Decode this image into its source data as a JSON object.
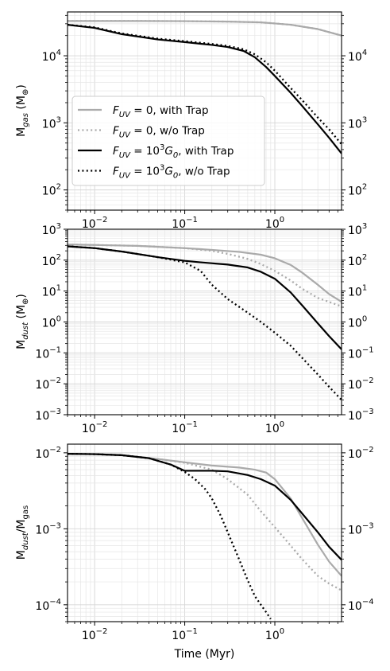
{
  "colors": {
    "gray": "#aaaaaa",
    "black": "#000000",
    "grid": "#e6e6e6"
  },
  "chart_data": [
    {
      "type": "line",
      "x_scale": "log",
      "y_scale": "log",
      "xlim": [
        0.005,
        5.5
      ],
      "ylim": [
        50,
        45000
      ],
      "ylabel": "M",
      "ylabel_sub": "gas",
      "ylabel_unit": " (M",
      "ylabel_unit_sub": "⊕",
      "ylabel_close": ")",
      "xlabel": "",
      "x_ticks": [
        {
          "value": 0.01,
          "base": "10",
          "exp": "−2"
        },
        {
          "value": 0.1,
          "base": "10",
          "exp": "−1"
        },
        {
          "value": 1,
          "base": "10",
          "exp": "0"
        }
      ],
      "y_ticks": [
        {
          "value": 100,
          "base": "10",
          "exp": "2"
        },
        {
          "value": 1000,
          "base": "10",
          "exp": "3"
        },
        {
          "value": 10000,
          "base": "10",
          "exp": "4"
        }
      ],
      "grid": true,
      "legend": {
        "placement": "lower-left",
        "entries": [
          {
            "text": "F_UV = 0, with Trap",
            "math": "F",
            "sub": "UV",
            "rest": " = 0, with Trap",
            "sup": "",
            "g": "",
            "tail": ""
          },
          {
            "text": "F_UV = 0, w/o Trap",
            "math": "F",
            "sub": "UV",
            "rest": " = 0, w/o Trap",
            "sup": "",
            "g": "",
            "tail": ""
          },
          {
            "text": "F_UV = 10^3 G_0, with Trap",
            "math": "F",
            "sub": "UV",
            "rest": " = 10",
            "sup": "3",
            "g": "G",
            "tail": ", with Trap"
          },
          {
            "text": "F_UV = 10^3 G_0, w/o Trap",
            "math": "F",
            "sub": "UV",
            "rest": " = 10",
            "sup": "3",
            "g": "G",
            "tail": ", w/o Trap"
          }
        ]
      },
      "series": [
        {
          "color": "gray",
          "style": "solid",
          "x": [
            0.005,
            0.01,
            0.03,
            0.1,
            0.3,
            0.7,
            1.5,
            3,
            5.5
          ],
          "y": [
            33000,
            33000,
            33000,
            32800,
            32300,
            31500,
            29000,
            25000,
            20000
          ]
        },
        {
          "color": "gray",
          "style": "dotted",
          "x": [
            0.005,
            0.01,
            0.03,
            0.1,
            0.3,
            0.7,
            1.5,
            3,
            5.5
          ],
          "y": [
            33000,
            33000,
            33000,
            32800,
            32300,
            31500,
            29000,
            25000,
            20000
          ]
        },
        {
          "color": "black",
          "style": "solid",
          "x": [
            0.005,
            0.01,
            0.02,
            0.05,
            0.1,
            0.2,
            0.3,
            0.45,
            0.6,
            0.8,
            1,
            1.5,
            2,
            3,
            4,
            5.5
          ],
          "y": [
            29000,
            26000,
            21000,
            17500,
            16000,
            14500,
            13500,
            11800,
            9500,
            6800,
            5000,
            2800,
            1800,
            950,
            600,
            350
          ]
        },
        {
          "color": "black",
          "style": "dotted",
          "x": [
            0.005,
            0.01,
            0.02,
            0.05,
            0.1,
            0.2,
            0.3,
            0.45,
            0.6,
            0.8,
            1,
            1.5,
            2,
            3,
            4,
            5.5
          ],
          "y": [
            29000,
            26500,
            21500,
            18000,
            16500,
            15000,
            14000,
            12500,
            10500,
            8000,
            6000,
            3300,
            2200,
            1200,
            800,
            480
          ]
        }
      ]
    },
    {
      "type": "line",
      "x_scale": "log",
      "y_scale": "log",
      "xlim": [
        0.005,
        5.5
      ],
      "ylim": [
        0.001,
        1000
      ],
      "ylabel": "M",
      "ylabel_sub": "dust",
      "ylabel_unit": " (M",
      "ylabel_unit_sub": "⊕",
      "ylabel_close": ")",
      "xlabel": "",
      "x_ticks": [
        {
          "value": 0.01,
          "base": "10",
          "exp": "−2"
        },
        {
          "value": 0.1,
          "base": "10",
          "exp": "−1"
        },
        {
          "value": 1,
          "base": "10",
          "exp": "0"
        }
      ],
      "y_ticks": [
        {
          "value": 0.001,
          "base": "10",
          "exp": "−3"
        },
        {
          "value": 0.01,
          "base": "10",
          "exp": "−2"
        },
        {
          "value": 0.1,
          "base": "10",
          "exp": "−1"
        },
        {
          "value": 1,
          "base": "10",
          "exp": "0"
        },
        {
          "value": 10,
          "base": "10",
          "exp": "1"
        },
        {
          "value": 100,
          "base": "10",
          "exp": "2"
        },
        {
          "value": 1000,
          "base": "10",
          "exp": "3"
        }
      ],
      "grid": true,
      "series": [
        {
          "color": "gray",
          "style": "solid",
          "x": [
            0.005,
            0.01,
            0.03,
            0.1,
            0.2,
            0.4,
            0.7,
            1,
            1.5,
            2,
            3,
            4,
            5.5
          ],
          "y": [
            320,
            310,
            290,
            245,
            215,
            185,
            150,
            115,
            70,
            40,
            16,
            8,
            4.5
          ]
        },
        {
          "color": "gray",
          "style": "dotted",
          "x": [
            0.005,
            0.01,
            0.03,
            0.1,
            0.2,
            0.3,
            0.5,
            0.7,
            1,
            1.5,
            2,
            3,
            5.5
          ],
          "y": [
            320,
            310,
            290,
            245,
            200,
            160,
            110,
            75,
            45,
            22,
            12,
            6,
            3.2
          ]
        },
        {
          "color": "black",
          "style": "solid",
          "x": [
            0.005,
            0.01,
            0.02,
            0.05,
            0.1,
            0.15,
            0.3,
            0.5,
            0.7,
            1,
            1.5,
            2,
            3,
            4,
            5.5
          ],
          "y": [
            280,
            245,
            190,
            125,
            95,
            85,
            72,
            58,
            42,
            25,
            9,
            3.5,
            0.9,
            0.35,
            0.13
          ]
        },
        {
          "color": "black",
          "style": "dotted",
          "x": [
            0.005,
            0.01,
            0.02,
            0.05,
            0.1,
            0.15,
            0.2,
            0.3,
            0.5,
            0.7,
            1,
            1.5,
            2,
            3,
            4,
            5.5
          ],
          "y": [
            280,
            245,
            190,
            125,
            85,
            45,
            16,
            5.5,
            2,
            1,
            0.45,
            0.17,
            0.07,
            0.02,
            0.008,
            0.003
          ]
        }
      ]
    },
    {
      "type": "line",
      "x_scale": "log",
      "y_scale": "log",
      "xlim": [
        0.005,
        5.5
      ],
      "ylim": [
        6e-05,
        0.013
      ],
      "ylabel": "M",
      "ylabel_sub": "dust",
      "ylabel_unit": "/M",
      "ylabel_unit_sub": "gas",
      "ylabel_close": "",
      "xlabel": "Time (Myr)",
      "x_ticks": [
        {
          "value": 0.01,
          "base": "10",
          "exp": "−2"
        },
        {
          "value": 0.1,
          "base": "10",
          "exp": "−1"
        },
        {
          "value": 1,
          "base": "10",
          "exp": "0"
        }
      ],
      "y_ticks": [
        {
          "value": 0.0001,
          "base": "10",
          "exp": "−4"
        },
        {
          "value": 0.001,
          "base": "10",
          "exp": "−3"
        },
        {
          "value": 0.01,
          "base": "10",
          "exp": "−2"
        }
      ],
      "grid": true,
      "series": [
        {
          "color": "gray",
          "style": "solid",
          "x": [
            0.005,
            0.01,
            0.02,
            0.05,
            0.1,
            0.2,
            0.4,
            0.6,
            0.8,
            1,
            1.5,
            2,
            3,
            4,
            5.5
          ],
          "y": [
            0.0097,
            0.0096,
            0.0093,
            0.0083,
            0.0075,
            0.0068,
            0.0064,
            0.006,
            0.0055,
            0.0045,
            0.0025,
            0.0014,
            0.00062,
            0.00037,
            0.00024
          ]
        },
        {
          "color": "gray",
          "style": "dotted",
          "x": [
            0.005,
            0.01,
            0.02,
            0.05,
            0.1,
            0.2,
            0.3,
            0.5,
            0.7,
            1,
            1.5,
            2,
            3,
            4,
            5.5
          ],
          "y": [
            0.0097,
            0.0096,
            0.0093,
            0.0083,
            0.0074,
            0.006,
            0.0045,
            0.0028,
            0.0017,
            0.00105,
            0.0006,
            0.0004,
            0.00024,
            0.00019,
            0.000155
          ]
        },
        {
          "color": "black",
          "style": "solid",
          "x": [
            0.005,
            0.01,
            0.02,
            0.04,
            0.07,
            0.1,
            0.15,
            0.2,
            0.3,
            0.5,
            0.7,
            1,
            1.5,
            2,
            3,
            4,
            5.5
          ],
          "y": [
            0.0097,
            0.0096,
            0.0093,
            0.0085,
            0.007,
            0.0058,
            0.0058,
            0.0058,
            0.0057,
            0.0051,
            0.0045,
            0.0037,
            0.0024,
            0.0016,
            0.0009,
            0.00058,
            0.00039
          ]
        },
        {
          "color": "black",
          "style": "dotted",
          "x": [
            0.005,
            0.01,
            0.02,
            0.04,
            0.07,
            0.1,
            0.13,
            0.17,
            0.2,
            0.25,
            0.3,
            0.4,
            0.5,
            0.6,
            0.7,
            0.8,
            0.9
          ],
          "y": [
            0.0097,
            0.0096,
            0.0093,
            0.0085,
            0.007,
            0.0056,
            0.0045,
            0.0033,
            0.0025,
            0.0015,
            0.0009,
            0.0004,
            0.00021,
            0.00013,
            0.0001,
            8e-05,
            6.5e-05
          ]
        }
      ]
    }
  ]
}
